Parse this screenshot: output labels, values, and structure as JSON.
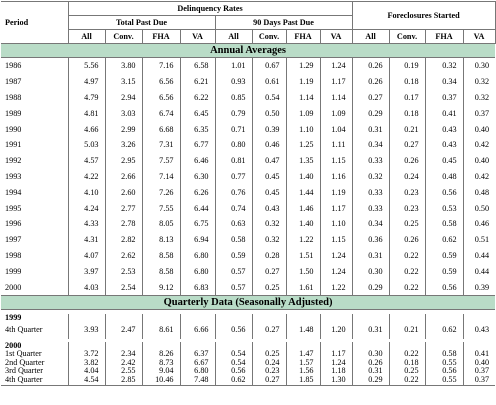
{
  "headers": {
    "period": "Period",
    "delinquency": "Delinquency Rates",
    "total_past_due": "Total Past Due",
    "days90": "90 Days Past Due",
    "foreclosures": "Foreclosures Started",
    "cols": [
      "All",
      "Conv.",
      "FHA",
      "VA"
    ]
  },
  "sections": {
    "annual": "Annual Averages",
    "quarterly": "Quarterly Data (Seasonally Adjusted)"
  },
  "annual_rows": [
    {
      "period": "1986",
      "v": [
        "5.56",
        "3.80",
        "7.16",
        "6.58",
        "1.01",
        "0.67",
        "1.29",
        "1.24",
        "0.26",
        "0.19",
        "0.32",
        "0.30"
      ]
    },
    {
      "period": "1987",
      "v": [
        "4.97",
        "3.15",
        "6.56",
        "6.21",
        "0.93",
        "0.61",
        "1.19",
        "1.17",
        "0.26",
        "0.18",
        "0.34",
        "0.32"
      ]
    },
    {
      "period": "1988",
      "v": [
        "4.79",
        "2.94",
        "6.56",
        "6.22",
        "0.85",
        "0.54",
        "1.14",
        "1.14",
        "0.27",
        "0.17",
        "0.37",
        "0.32"
      ]
    },
    {
      "period": "1989",
      "v": [
        "4.81",
        "3.03",
        "6.74",
        "6.45",
        "0.79",
        "0.50",
        "1.09",
        "1.09",
        "0.29",
        "0.18",
        "0.41",
        "0.37"
      ]
    },
    {
      "period": "1990",
      "v": [
        "4.66",
        "2.99",
        "6.68",
        "6.35",
        "0.71",
        "0.39",
        "1.10",
        "1.04",
        "0.31",
        "0.21",
        "0.43",
        "0.40"
      ]
    },
    {
      "period": "1991",
      "v": [
        "5.03",
        "3.26",
        "7.31",
        "6.77",
        "0.80",
        "0.46",
        "1.25",
        "1.11",
        "0.34",
        "0.27",
        "0.43",
        "0.42"
      ]
    },
    {
      "period": "1992",
      "v": [
        "4.57",
        "2.95",
        "7.57",
        "6.46",
        "0.81",
        "0.47",
        "1.35",
        "1.15",
        "0.33",
        "0.26",
        "0.45",
        "0.40"
      ]
    },
    {
      "period": "1993",
      "v": [
        "4.22",
        "2.66",
        "7.14",
        "6.30",
        "0.77",
        "0.45",
        "1.40",
        "1.16",
        "0.32",
        "0.24",
        "0.48",
        "0.42"
      ]
    },
    {
      "period": "1994",
      "v": [
        "4.10",
        "2.60",
        "7.26",
        "6.26",
        "0.76",
        "0.45",
        "1.44",
        "1.19",
        "0.33",
        "0.23",
        "0.56",
        "0.48"
      ]
    },
    {
      "period": "1995",
      "v": [
        "4.24",
        "2.77",
        "7.55",
        "6.44",
        "0.74",
        "0.43",
        "1.46",
        "1.17",
        "0.33",
        "0.23",
        "0.53",
        "0.50"
      ]
    },
    {
      "period": "1996",
      "v": [
        "4.33",
        "2.78",
        "8.05",
        "6.75",
        "0.63",
        "0.32",
        "1.40",
        "1.10",
        "0.34",
        "0.25",
        "0.58",
        "0.46"
      ]
    },
    {
      "period": "1997",
      "v": [
        "4.31",
        "2.82",
        "8.13",
        "6.94",
        "0.58",
        "0.32",
        "1.22",
        "1.15",
        "0.36",
        "0.26",
        "0.62",
        "0.51"
      ]
    },
    {
      "period": "1998",
      "v": [
        "4.07",
        "2.62",
        "8.58",
        "6.80",
        "0.59",
        "0.28",
        "1.51",
        "1.24",
        "0.31",
        "0.22",
        "0.59",
        "0.44"
      ]
    },
    {
      "period": "1999",
      "v": [
        "3.97",
        "2.53",
        "8.58",
        "6.80",
        "0.57",
        "0.27",
        "1.50",
        "1.24",
        "0.30",
        "0.22",
        "0.59",
        "0.44"
      ]
    },
    {
      "period": "2000",
      "v": [
        "4.03",
        "2.54",
        "9.12",
        "6.83",
        "0.57",
        "0.25",
        "1.61",
        "1.22",
        "0.29",
        "0.22",
        "0.56",
        "0.39"
      ]
    }
  ],
  "q1999": {
    "year": "1999",
    "rows": [
      {
        "period": "4th Quarter",
        "v": [
          "3.93",
          "2.47",
          "8.61",
          "6.66",
          "0.56",
          "0.27",
          "1.48",
          "1.20",
          "0.31",
          "0.21",
          "0.62",
          "0.43"
        ]
      }
    ]
  },
  "q2000": {
    "year": "2000",
    "rows": [
      {
        "period": "1st Quarter",
        "v": [
          "3.72",
          "2.34",
          "8.26",
          "6.37",
          "0.54",
          "0.25",
          "1.47",
          "1.17",
          "0.30",
          "0.22",
          "0.58",
          "0.41"
        ]
      },
      {
        "period": "2nd Quarter",
        "v": [
          "3.82",
          "2.42",
          "8.73",
          "6.67",
          "0.54",
          "0.24",
          "1.57",
          "1.24",
          "0.26",
          "0.18",
          "0.55",
          "0.40"
        ]
      },
      {
        "period": "3rd Quarter",
        "v": [
          "4.04",
          "2.55",
          "9.04",
          "6.80",
          "0.56",
          "0.23",
          "1.56",
          "1.18",
          "0.31",
          "0.25",
          "0.56",
          "0.37"
        ]
      },
      {
        "period": "4th Quarter",
        "v": [
          "4.54",
          "2.85",
          "10.46",
          "7.48",
          "0.62",
          "0.27",
          "1.85",
          "1.30",
          "0.29",
          "0.22",
          "0.55",
          "0.37"
        ]
      }
    ]
  }
}
